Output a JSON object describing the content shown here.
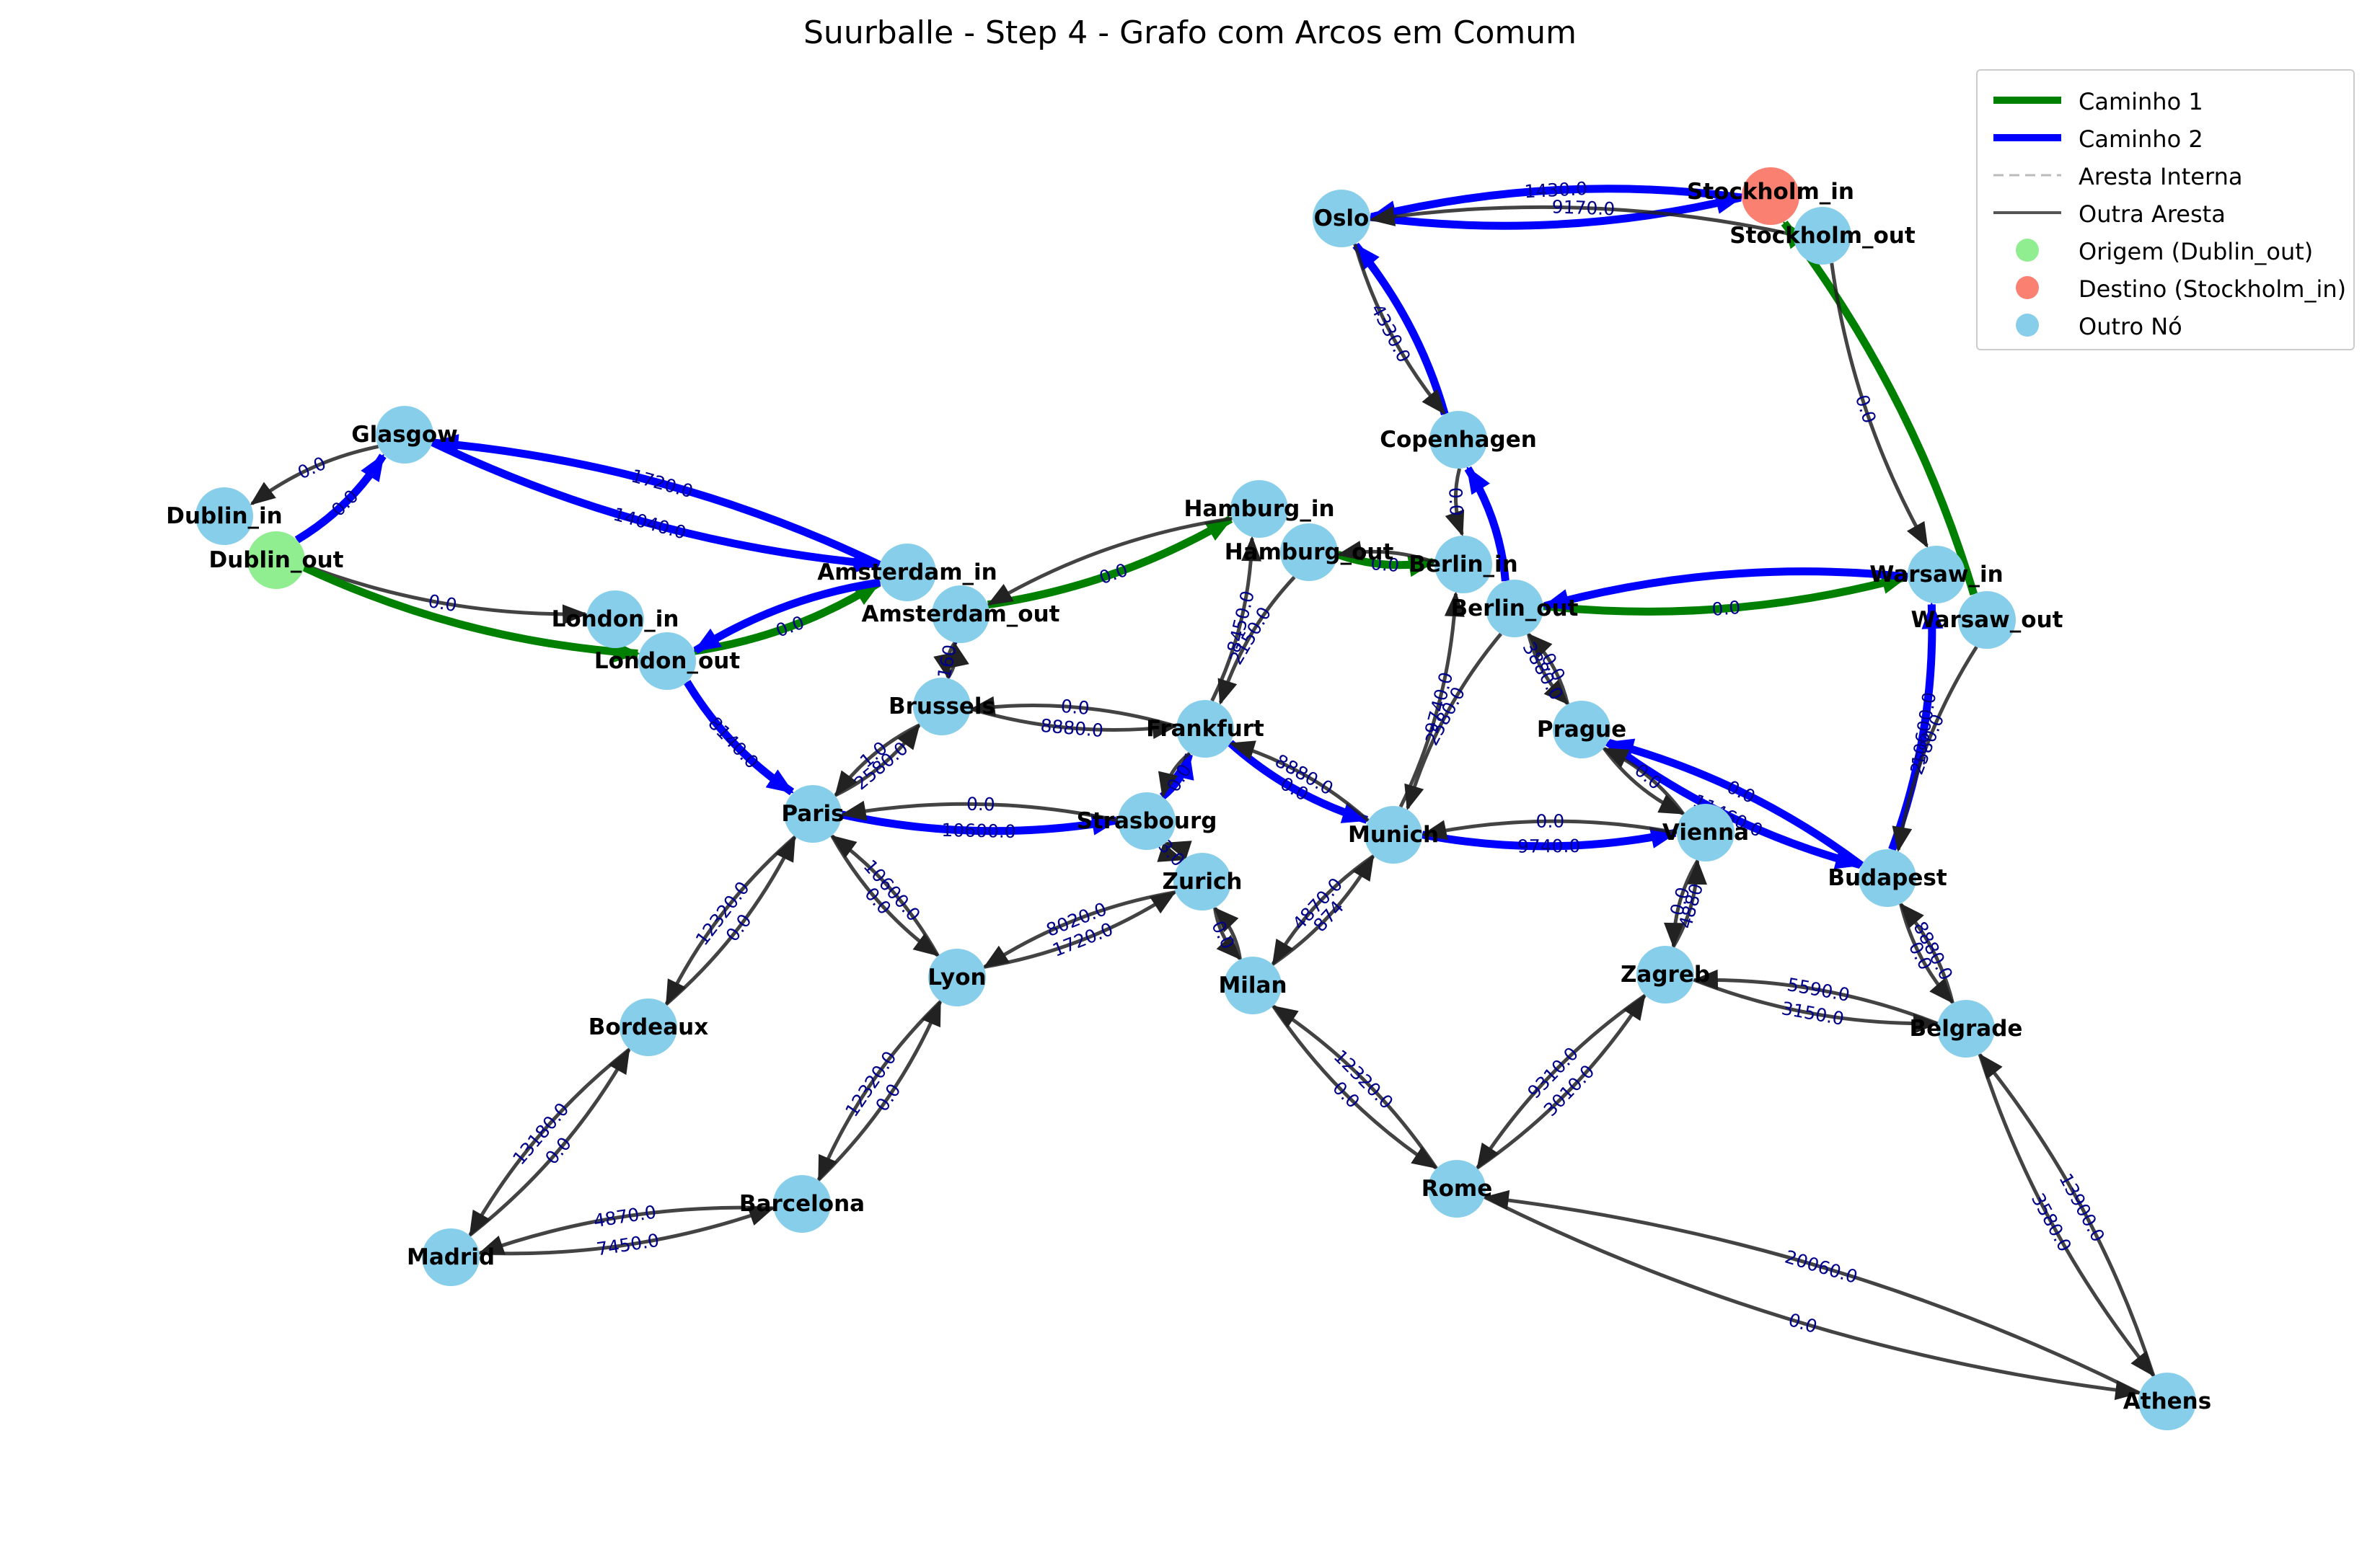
{
  "title": "Suurballe - Step 4 - Grafo com Arcos em Comum",
  "legend": [
    {
      "label": "Caminho 1",
      "kind": "line",
      "color": "#008000",
      "width": 10
    },
    {
      "label": "Caminho 2",
      "kind": "line",
      "color": "#0000ff",
      "width": 10
    },
    {
      "label": "Aresta Interna",
      "kind": "dash",
      "color": "#bbbbbb",
      "width": 3
    },
    {
      "label": "Outra Aresta",
      "kind": "line",
      "color": "#555555",
      "width": 4
    },
    {
      "label": "Origem (Dublin_out)",
      "kind": "dot",
      "color": "#90ee90"
    },
    {
      "label": "Destino (Stockholm_in)",
      "kind": "dot",
      "color": "#fa8072"
    },
    {
      "label": "Outro Nó",
      "kind": "dot",
      "color": "#87ceeb"
    }
  ],
  "colors": {
    "node_default": "#87ceeb",
    "node_origin": "#90ee90",
    "node_destination": "#fa8072",
    "path1": "#008000",
    "path2": "#0000ff",
    "other_edge": "#222222",
    "edge_label": "#00008b"
  },
  "nodes": [
    {
      "id": "Oslo",
      "label": "Oslo",
      "role": "other"
    },
    {
      "id": "Stockholm_in",
      "label": "Stockholm_in",
      "role": "destination"
    },
    {
      "id": "Stockholm_out",
      "label": "Stockholm_out",
      "role": "other"
    },
    {
      "id": "Copenhagen",
      "label": "Copenhagen",
      "role": "other"
    },
    {
      "id": "Glasgow",
      "label": "Glasgow",
      "role": "other"
    },
    {
      "id": "Dublin_in",
      "label": "Dublin_in",
      "role": "other"
    },
    {
      "id": "Dublin_out",
      "label": "Dublin_out",
      "role": "origin"
    },
    {
      "id": "London_in",
      "label": "London_in",
      "role": "other"
    },
    {
      "id": "London_out",
      "label": "London_out",
      "role": "other"
    },
    {
      "id": "Amsterdam_in",
      "label": "Amsterdam_in",
      "role": "other"
    },
    {
      "id": "Amsterdam_out",
      "label": "Amsterdam_out",
      "role": "other"
    },
    {
      "id": "Hamburg_in",
      "label": "Hamburg_in",
      "role": "other"
    },
    {
      "id": "Hamburg_out",
      "label": "Hamburg_out",
      "role": "other"
    },
    {
      "id": "Berlin_in",
      "label": "Berlin_in",
      "role": "other"
    },
    {
      "id": "Berlin_out",
      "label": "Berlin_out",
      "role": "other"
    },
    {
      "id": "Warsaw_in",
      "label": "Warsaw_in",
      "role": "other"
    },
    {
      "id": "Warsaw_out",
      "label": "Warsaw_out",
      "role": "other"
    },
    {
      "id": "Brussels",
      "label": "Brussels",
      "role": "other"
    },
    {
      "id": "Frankfurt",
      "label": "Frankfurt",
      "role": "other"
    },
    {
      "id": "Prague",
      "label": "Prague",
      "role": "other"
    },
    {
      "id": "Paris",
      "label": "Paris",
      "role": "other"
    },
    {
      "id": "Strasbourg",
      "label": "Strasbourg",
      "role": "other"
    },
    {
      "id": "Munich",
      "label": "Munich",
      "role": "other"
    },
    {
      "id": "Vienna",
      "label": "Vienna",
      "role": "other"
    },
    {
      "id": "Budapest",
      "label": "Budapest",
      "role": "other"
    },
    {
      "id": "Zurich",
      "label": "Zurich",
      "role": "other"
    },
    {
      "id": "Lyon",
      "label": "Lyon",
      "role": "other"
    },
    {
      "id": "Milan",
      "label": "Milan",
      "role": "other"
    },
    {
      "id": "Zagreb",
      "label": "Zagreb",
      "role": "other"
    },
    {
      "id": "Belgrade",
      "label": "Belgrade",
      "role": "other"
    },
    {
      "id": "Bordeaux",
      "label": "Bordeaux",
      "role": "other"
    },
    {
      "id": "Barcelona",
      "label": "Barcelona",
      "role": "other"
    },
    {
      "id": "Madrid",
      "label": "Madrid",
      "role": "other"
    },
    {
      "id": "Rome",
      "label": "Rome",
      "role": "other"
    },
    {
      "id": "Athens",
      "label": "Athens",
      "role": "other"
    }
  ],
  "edges": [
    {
      "from": "Stockholm_in",
      "to": "Oslo",
      "kind": "path2",
      "label": "1430.0"
    },
    {
      "from": "Oslo",
      "to": "Stockholm_in",
      "kind": "path2",
      "label": ""
    },
    {
      "from": "Stockholm_out",
      "to": "Oslo",
      "kind": "other",
      "label": "9170.0"
    },
    {
      "from": "Warsaw_out",
      "to": "Stockholm_in",
      "kind": "path1",
      "label": ""
    },
    {
      "from": "Stockholm_out",
      "to": "Warsaw_in",
      "kind": "other",
      "label": "0.0"
    },
    {
      "from": "Copenhagen",
      "to": "Oslo",
      "kind": "path2",
      "label": ""
    },
    {
      "from": "Oslo",
      "to": "Copenhagen",
      "kind": "other",
      "label": "4330.0"
    },
    {
      "from": "Berlin_out",
      "to": "Copenhagen",
      "kind": "path2",
      "label": ""
    },
    {
      "from": "Copenhagen",
      "to": "Berlin_in",
      "kind": "other",
      "label": "0.0"
    },
    {
      "from": "Glasgow",
      "to": "Dublin_in",
      "kind": "other",
      "label": "0.0"
    },
    {
      "from": "Dublin_out",
      "to": "Glasgow",
      "kind": "path2",
      "label": "0.0"
    },
    {
      "from": "Dublin_out",
      "to": "London_in",
      "kind": "other",
      "label": "0.0"
    },
    {
      "from": "Dublin_out",
      "to": "London_out",
      "kind": "path1",
      "label": ""
    },
    {
      "from": "Amsterdam_in",
      "to": "Glasgow",
      "kind": "path2",
      "label": "1720.0"
    },
    {
      "from": "Glasgow",
      "to": "Amsterdam_in",
      "kind": "path2",
      "label": "14040.0"
    },
    {
      "from": "London_out",
      "to": "Amsterdam_in",
      "kind": "path1",
      "label": "0.0"
    },
    {
      "from": "Amsterdam_in",
      "to": "London_out",
      "kind": "path2",
      "label": ""
    },
    {
      "from": "Amsterdam_out",
      "to": "Hamburg_in",
      "kind": "path1",
      "label": "0.0"
    },
    {
      "from": "Hamburg_in",
      "to": "Amsterdam_out",
      "kind": "other",
      "label": ""
    },
    {
      "from": "Hamburg_out",
      "to": "Berlin_in",
      "kind": "path1",
      "label": "0.0"
    },
    {
      "from": "Berlin_in",
      "to": "Hamburg_out",
      "kind": "other",
      "label": ""
    },
    {
      "from": "Berlin_out",
      "to": "Warsaw_in",
      "kind": "path1",
      "label": "0.0"
    },
    {
      "from": "Warsaw_in",
      "to": "Berlin_out",
      "kind": "path2",
      "label": ""
    },
    {
      "from": "Budapest",
      "to": "Warsaw_in",
      "kind": "path2",
      "label": "10600.0"
    },
    {
      "from": "Warsaw_out",
      "to": "Budapest",
      "kind": "other",
      "label": "2580.0"
    },
    {
      "from": "London_out",
      "to": "Paris",
      "kind": "path2",
      "label": "8140.0"
    },
    {
      "from": "Amsterdam_out",
      "to": "Brussels",
      "kind": "other",
      "label": "1160.0"
    },
    {
      "from": "Brussels",
      "to": "Amsterdam_out",
      "kind": "other",
      "label": ""
    },
    {
      "from": "Frankfurt",
      "to": "Brussels",
      "kind": "other",
      "label": "0.0"
    },
    {
      "from": "Brussels",
      "to": "Frankfurt",
      "kind": "other",
      "label": "8880.0"
    },
    {
      "from": "Frankfurt",
      "to": "Hamburg_in",
      "kind": "other",
      "label": "8450.0"
    },
    {
      "from": "Hamburg_out",
      "to": "Frankfurt",
      "kind": "other",
      "label": "2150.0"
    },
    {
      "from": "Paris",
      "to": "Brussels",
      "kind": "other",
      "label": "2580.0"
    },
    {
      "from": "Brussels",
      "to": "Paris",
      "kind": "other",
      "label": "1.0"
    },
    {
      "from": "Frankfurt",
      "to": "Munich",
      "kind": "path2",
      "label": "0.0"
    },
    {
      "from": "Munich",
      "to": "Frankfurt",
      "kind": "other",
      "label": "8880.0"
    },
    {
      "from": "Strasbourg",
      "to": "Frankfurt",
      "kind": "path2",
      "label": "0.0"
    },
    {
      "from": "Frankfurt",
      "to": "Strasbourg",
      "kind": "other",
      "label": ""
    },
    {
      "from": "Paris",
      "to": "Strasbourg",
      "kind": "path2",
      "label": "10600.0"
    },
    {
      "from": "Strasbourg",
      "to": "Paris",
      "kind": "other",
      "label": "0.0"
    },
    {
      "from": "Berlin_out",
      "to": "Munich",
      "kind": "other",
      "label": "2580.0"
    },
    {
      "from": "Munich",
      "to": "Berlin_in",
      "kind": "other",
      "label": "9740.0"
    },
    {
      "from": "Berlin_out",
      "to": "Prague",
      "kind": "other",
      "label": "3880.0"
    },
    {
      "from": "Prague",
      "to": "Berlin_out",
      "kind": "other",
      "label": "0.0"
    },
    {
      "from": "Munich",
      "to": "Vienna",
      "kind": "path2",
      "label": "9740.0"
    },
    {
      "from": "Vienna",
      "to": "Munich",
      "kind": "other",
      "label": "0.0"
    },
    {
      "from": "Prague",
      "to": "Budapest",
      "kind": "path2",
      "label": "11460.0"
    },
    {
      "from": "Budapest",
      "to": "Prague",
      "kind": "path2",
      "label": "0.0"
    },
    {
      "from": "Prague",
      "to": "Vienna",
      "kind": "other",
      "label": ""
    },
    {
      "from": "Vienna",
      "to": "Prague",
      "kind": "other",
      "label": "0.0"
    },
    {
      "from": "Strasbourg",
      "to": "Zurich",
      "kind": "other",
      "label": "3.0"
    },
    {
      "from": "Zurich",
      "to": "Strasbourg",
      "kind": "other",
      "label": ""
    },
    {
      "from": "Paris",
      "to": "Lyon",
      "kind": "other",
      "label": "0.0"
    },
    {
      "from": "Lyon",
      "to": "Paris",
      "kind": "other",
      "label": "10600.0"
    },
    {
      "from": "Lyon",
      "to": "Zurich",
      "kind": "other",
      "label": "1720.0"
    },
    {
      "from": "Zurich",
      "to": "Lyon",
      "kind": "other",
      "label": "8020.0"
    },
    {
      "from": "Zurich",
      "to": "Milan",
      "kind": "other",
      "label": "0.0"
    },
    {
      "from": "Milan",
      "to": "Zurich",
      "kind": "other",
      "label": ""
    },
    {
      "from": "Munich",
      "to": "Milan",
      "kind": "other",
      "label": "4870.0"
    },
    {
      "from": "Milan",
      "to": "Munich",
      "kind": "other",
      "label": "874"
    },
    {
      "from": "Vienna",
      "to": "Zagreb",
      "kind": "other",
      "label": "0.0"
    },
    {
      "from": "Zagreb",
      "to": "Vienna",
      "kind": "other",
      "label": "4880"
    },
    {
      "from": "Budapest",
      "to": "Belgrade",
      "kind": "other",
      "label": "0.0"
    },
    {
      "from": "Belgrade",
      "to": "Budapest",
      "kind": "other",
      "label": "8880.0"
    },
    {
      "from": "Zagreb",
      "to": "Belgrade",
      "kind": "other",
      "label": "3150.0"
    },
    {
      "from": "Belgrade",
      "to": "Zagreb",
      "kind": "other",
      "label": "5590.0"
    },
    {
      "from": "Paris",
      "to": "Bordeaux",
      "kind": "other",
      "label": "12320.0"
    },
    {
      "from": "Bordeaux",
      "to": "Paris",
      "kind": "other",
      "label": "0.0"
    },
    {
      "from": "Lyon",
      "to": "Barcelona",
      "kind": "other",
      "label": "12320.0"
    },
    {
      "from": "Barcelona",
      "to": "Lyon",
      "kind": "other",
      "label": "0.0"
    },
    {
      "from": "Bordeaux",
      "to": "Madrid",
      "kind": "other",
      "label": "13180.0"
    },
    {
      "from": "Madrid",
      "to": "Bordeaux",
      "kind": "other",
      "label": "0.0"
    },
    {
      "from": "Madrid",
      "to": "Barcelona",
      "kind": "other",
      "label": "7450.0"
    },
    {
      "from": "Barcelona",
      "to": "Madrid",
      "kind": "other",
      "label": "4870.0"
    },
    {
      "from": "Milan",
      "to": "Rome",
      "kind": "other",
      "label": "0.0"
    },
    {
      "from": "Rome",
      "to": "Milan",
      "kind": "other",
      "label": "12320.0"
    },
    {
      "from": "Rome",
      "to": "Zagreb",
      "kind": "other",
      "label": "3010.0"
    },
    {
      "from": "Zagreb",
      "to": "Rome",
      "kind": "other",
      "label": "9310.0"
    },
    {
      "from": "Rome",
      "to": "Athens",
      "kind": "other",
      "label": "0.0"
    },
    {
      "from": "Athens",
      "to": "Rome",
      "kind": "other",
      "label": "20060.0"
    },
    {
      "from": "Belgrade",
      "to": "Athens",
      "kind": "other",
      "label": "3580.0"
    },
    {
      "from": "Athens",
      "to": "Belgrade",
      "kind": "other",
      "label": "13900.0"
    }
  ]
}
